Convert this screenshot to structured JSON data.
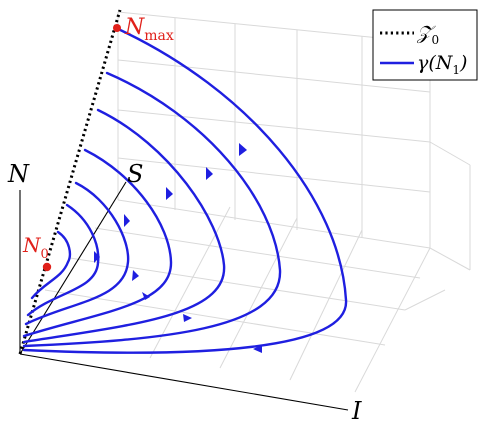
{
  "axes": {
    "n_label": "N",
    "s_label": "S",
    "i_label": "I"
  },
  "points": {
    "n_max": {
      "base": "N",
      "subscript": "max"
    },
    "n_zero": {
      "base": "N",
      "subscript": "0"
    }
  },
  "legend": {
    "dotted_line_symbol": "𝒵",
    "dotted_line_subscript": "0",
    "curve_label": "γ(N",
    "curve_subscript": "1",
    "curve_close": ")"
  },
  "colors": {
    "curve": "#1f1fe0",
    "point": "#e0201a",
    "dotted": "#000000",
    "grid": "#d9d9d9",
    "axis": "#000000"
  }
}
